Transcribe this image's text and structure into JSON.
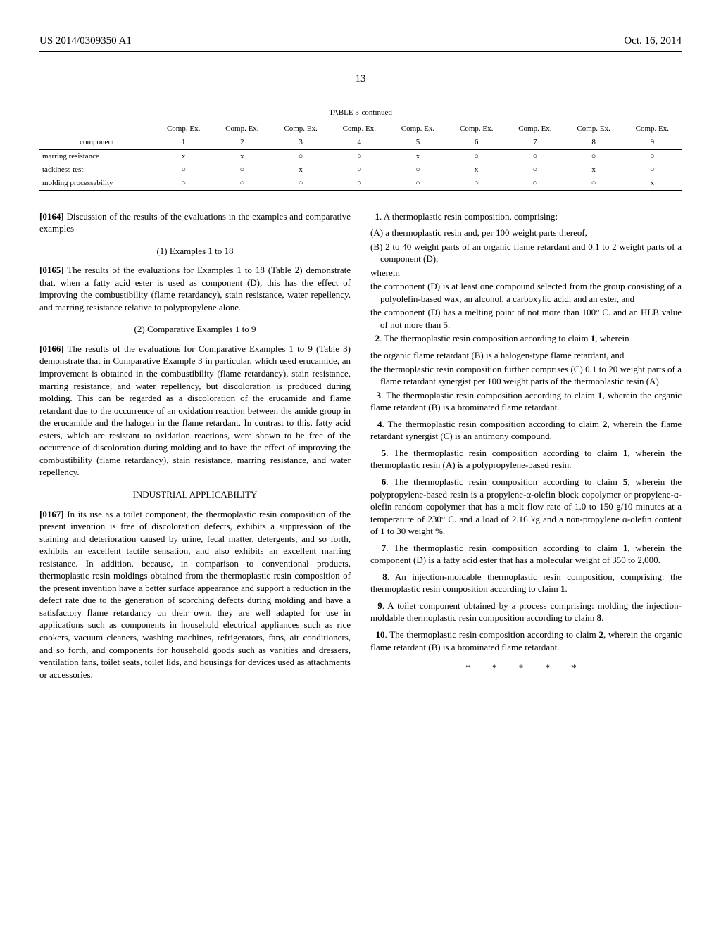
{
  "header": {
    "pub_number": "US 2014/0309350 A1",
    "pub_date": "Oct. 16, 2014"
  },
  "page_num": "13",
  "table": {
    "caption": "TABLE 3-continued",
    "col_top_label": "Comp. Ex.",
    "corner_label": "component",
    "col_nums": [
      "1",
      "2",
      "3",
      "4",
      "5",
      "6",
      "7",
      "8",
      "9"
    ],
    "rows": [
      {
        "label": "marring resistance",
        "cells": [
          "x",
          "x",
          "○",
          "○",
          "x",
          "○",
          "○",
          "○",
          "○"
        ]
      },
      {
        "label": "tackiness test",
        "cells": [
          "○",
          "○",
          "x",
          "○",
          "○",
          "x",
          "○",
          "x",
          "○"
        ]
      },
      {
        "label": "molding processability",
        "cells": [
          "○",
          "○",
          "○",
          "○",
          "○",
          "○",
          "○",
          "○",
          "x"
        ]
      }
    ]
  },
  "body": {
    "p0164_num": "[0164]",
    "p0164": " Discussion of the results of the evaluations in the examples and comparative examples",
    "h1": "(1) Examples 1 to 18",
    "p0165_num": "[0165]",
    "p0165": " The results of the evaluations for Examples 1 to 18 (Table 2) demonstrate that, when a fatty acid ester is used as component (D), this has the effect of improving the combustibility (flame retardancy), stain resistance, water repellency, and marring resistance relative to polypropylene alone.",
    "h2": "(2) Comparative Examples 1 to 9",
    "p0166_num": "[0166]",
    "p0166": " The results of the evaluations for Comparative Examples 1 to 9 (Table 3) demonstrate that in Comparative Example 3 in particular, which used erucamide, an improvement is obtained in the combustibility (flame retardancy), stain resistance, marring resistance, and water repellency, but discoloration is produced during molding. This can be regarded as a discoloration of the erucamide and flame retardant due to the occurrence of an oxidation reaction between the amide group in the erucamide and the halogen in the flame retardant. In contrast to this, fatty acid esters, which are resistant to oxidation reactions, were shown to be free of the occurrence of discoloration during molding and to have the effect of improving the combustibility (flame retardancy), stain resistance, marring resistance, and water repellency.",
    "h3": "INDUSTRIAL APPLICABILITY",
    "p0167_num": "[0167]",
    "p0167": " In its use as a toilet component, the thermoplastic resin composition of the present invention is free of discoloration defects, exhibits a suppression of the staining and deterioration caused by urine, fecal matter, detergents, and so forth, exhibits an excellent tactile sensation, and also exhibits an excellent marring resistance. In addition, because, in comparison to conventional products, thermoplastic resin moldings obtained from the thermoplastic resin composition of the present invention have a better surface appearance and support a reduction in the defect rate due to the generation of scorching defects during molding and have a satisfactory flame retardancy on their own, they are well adapted for use in applications such as components in household electrical appliances such as rice cookers, vacuum cleaners, washing machines, refrigerators, fans, air conditioners, and so forth, and components for household goods such as vanities and dressers, ventilation fans, toilet seats, toilet lids, and housings for devices used as attachments or accessories."
  },
  "claims": {
    "c1_lead_num": "1",
    "c1_lead": ". A thermoplastic resin composition, comprising:",
    "c1_a": "(A) a thermoplastic resin and, per 100 weight parts thereof,",
    "c1_b": "(B) 2 to 40 weight parts of an organic flame retardant and 0.1 to 2 weight parts of a component (D),",
    "c1_wherein": "wherein",
    "c1_d1": "the component (D) is at least one compound selected from the group consisting of a polyolefin-based wax, an alcohol, a carboxylic acid, and an ester, and",
    "c1_d2": "the component (D) has a melting point of not more than 100° C. and an HLB value of not more than 5.",
    "c2_lead_num": "2",
    "c2_lead_a": ". The thermoplastic resin composition according to claim ",
    "c2_lead_b": "1",
    "c2_lead_c": ", wherein",
    "c2_a": "the organic flame retardant (B) is a halogen-type flame retardant, and",
    "c2_b": "the thermoplastic resin composition further comprises (C) 0.1 to 20 weight parts of a flame retardant synergist per 100 weight parts of the thermoplastic resin (A).",
    "c3_num": "3",
    "c3_a": ". The thermoplastic resin composition according to claim ",
    "c3_b": "1",
    "c3_c": ", wherein the organic flame retardant (B) is a brominated flame retardant.",
    "c4_num": "4",
    "c4_a": ". The thermoplastic resin composition according to claim ",
    "c4_b": "2",
    "c4_c": ", wherein the flame retardant synergist (C) is an antimony compound.",
    "c5_num": "5",
    "c5_a": ". The thermoplastic resin composition according to claim ",
    "c5_b": "1",
    "c5_c": ", wherein the thermoplastic resin (A) is a polypropylene-based resin.",
    "c6_num": "6",
    "c6_a": ". The thermoplastic resin composition according to claim ",
    "c6_b": "5",
    "c6_c": ", wherein the polypropylene-based resin is a propylene-α-olefin block copolymer or propylene-α-olefin random copolymer that has a melt flow rate of 1.0 to 150 g/10 minutes at a temperature of 230° C. and a load of 2.16 kg and a non-propylene α-olefin content of 1 to 30 weight %.",
    "c7_num": "7",
    "c7_a": ". The thermoplastic resin composition according to claim ",
    "c7_b": "1",
    "c7_c": ", wherein the component (D) is a fatty acid ester that has a molecular weight of 350 to 2,000.",
    "c8_num": "8",
    "c8_a": ". An injection-moldable thermoplastic resin composition, comprising: the thermoplastic resin composition according to claim ",
    "c8_b": "1",
    "c8_c": ".",
    "c9_num": "9",
    "c9_a": ". A toilet component obtained by a process comprising: molding the injection-moldable thermoplastic resin composition according to claim ",
    "c9_b": "8",
    "c9_c": ".",
    "c10_num": "10",
    "c10_a": ". The thermoplastic resin composition according to claim ",
    "c10_b": "2",
    "c10_c": ", wherein the organic flame retardant (B) is a brominated flame retardant."
  },
  "stars": "*   *   *   *   *"
}
